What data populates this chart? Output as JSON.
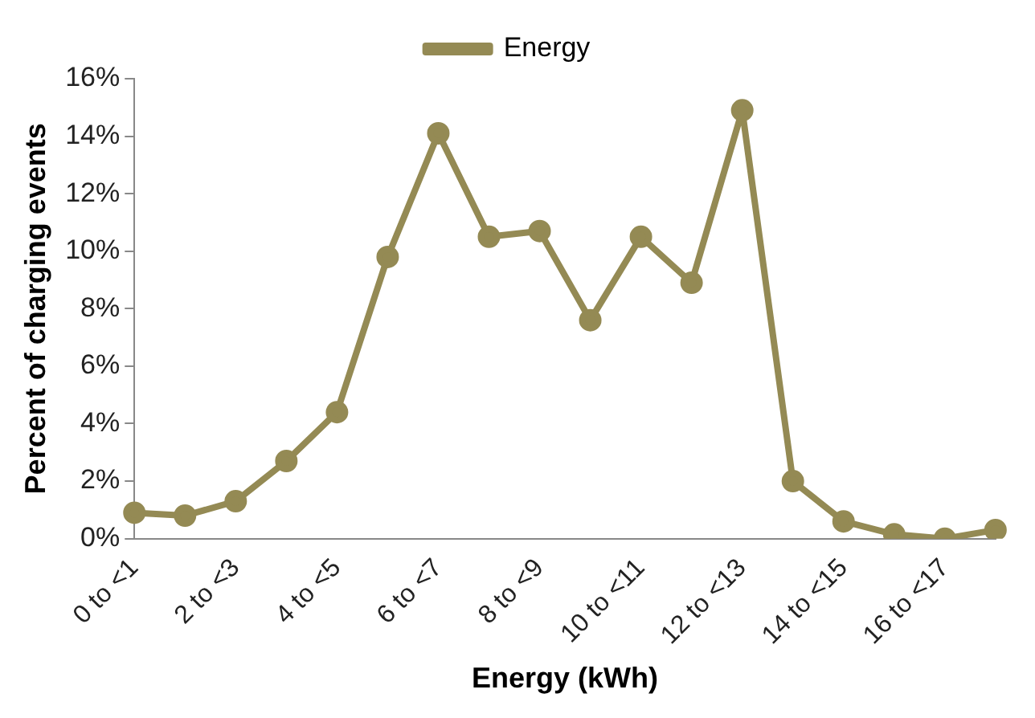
{
  "chart_data": {
    "type": "line",
    "xlabel": "Energy (kWh)",
    "ylabel": "Percent of charging events",
    "categories": [
      "0 to <1",
      null,
      "2 to <3",
      null,
      "4 to <5",
      null,
      "6 to <7",
      null,
      "8 to <9",
      null,
      "10 to <11",
      null,
      "12 to <13",
      null,
      "14 to <15",
      null,
      "16 to <17",
      null
    ],
    "series": [
      {
        "name": "Energy",
        "color": "#948a54",
        "values": [
          0.9,
          0.8,
          1.3,
          2.7,
          4.4,
          9.8,
          14.1,
          10.5,
          10.7,
          7.6,
          10.5,
          8.9,
          14.9,
          2.0,
          0.6,
          0.15,
          0.0,
          0.3
        ]
      }
    ],
    "ylim": [
      0,
      16
    ],
    "yticks": [
      {
        "value": 0,
        "label": "0%"
      },
      {
        "value": 2,
        "label": "2%"
      },
      {
        "value": 4,
        "label": "4%"
      },
      {
        "value": 6,
        "label": "6%"
      },
      {
        "value": 8,
        "label": "8%"
      },
      {
        "value": 10,
        "label": "10%"
      },
      {
        "value": 12,
        "label": "12%"
      },
      {
        "value": 14,
        "label": "14%"
      },
      {
        "value": 16,
        "label": "16%"
      }
    ],
    "grid": false,
    "legend": "top",
    "marker": "circle",
    "line_style": "solid"
  }
}
